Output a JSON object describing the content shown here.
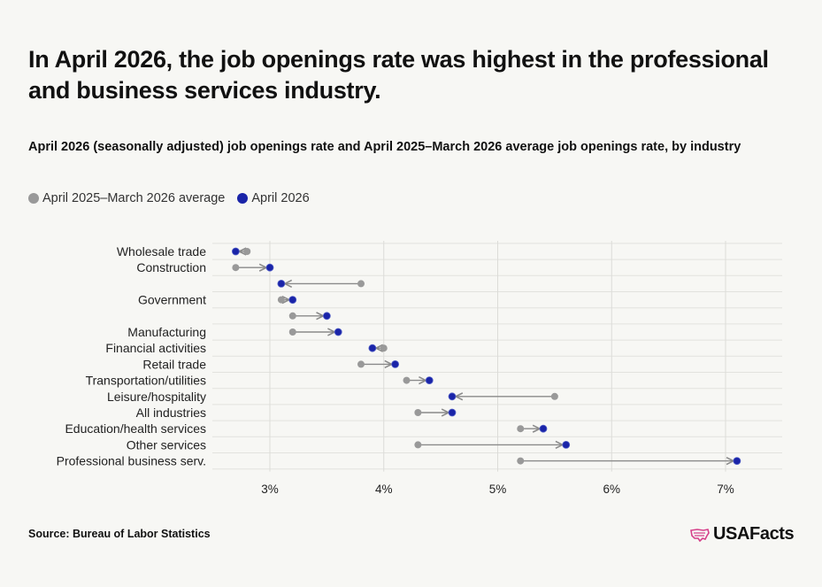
{
  "header": {
    "title": "In April 2026, the job openings rate was highest in the professional and business services industry.",
    "subtitle": "April 2026 (seasonally adjusted) job openings rate and April 2025–March 2026 average job openings rate, by industry"
  },
  "legend": [
    {
      "label": "April 2025–March 2026 average",
      "color": "#999999"
    },
    {
      "label": "April 2026",
      "color": "#1a24a8"
    }
  ],
  "footer": {
    "source": "Source: Bureau of Labor Statistics",
    "brand": "USAFacts",
    "brand_icon": "usa-map-icon"
  },
  "chart_data": {
    "type": "dot-arrow",
    "xlim": [
      2.5,
      7.5
    ],
    "x_ticks": [
      3,
      4,
      5,
      6,
      7
    ],
    "x_tick_labels": [
      "3%",
      "4%",
      "5%",
      "6%",
      "7%"
    ],
    "grid": true,
    "series": [
      {
        "name": "April 2025–March 2026 average",
        "color": "#999999"
      },
      {
        "name": "April 2026",
        "color": "#1a24a8"
      }
    ],
    "rows": [
      {
        "label": "Wholesale trade",
        "avg": 2.8,
        "current": 2.7
      },
      {
        "label": "Construction",
        "avg": 2.7,
        "current": 3.0
      },
      {
        "label": "",
        "avg": 3.8,
        "current": 3.1
      },
      {
        "label": "Government",
        "avg": 3.1,
        "current": 3.2
      },
      {
        "label": "",
        "avg": 3.2,
        "current": 3.5
      },
      {
        "label": "Manufacturing",
        "avg": 3.2,
        "current": 3.6
      },
      {
        "label": "Financial activities",
        "avg": 4.0,
        "current": 3.9
      },
      {
        "label": "Retail trade",
        "avg": 3.8,
        "current": 4.1
      },
      {
        "label": "Transportation/utilities",
        "avg": 4.2,
        "current": 4.4
      },
      {
        "label": "Leisure/hospitality",
        "avg": 5.5,
        "current": 4.6
      },
      {
        "label": "All industries",
        "avg": 4.3,
        "current": 4.6
      },
      {
        "label": "Education/health services",
        "avg": 5.2,
        "current": 5.4
      },
      {
        "label": "Other services",
        "avg": 4.3,
        "current": 5.6
      },
      {
        "label": "Professional business serv.",
        "avg": 5.2,
        "current": 7.1
      }
    ]
  }
}
